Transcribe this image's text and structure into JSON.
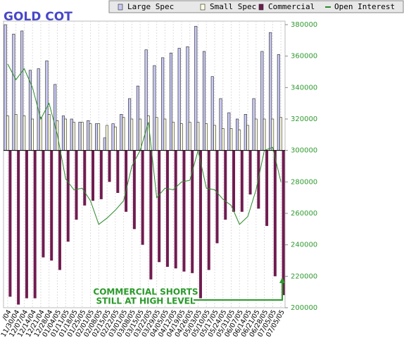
{
  "chart_data": {
    "type": "bar",
    "title": "GOLD COT",
    "categories": [
      "/04",
      "11/30/04",
      "12/07/04",
      "12/14/04",
      "12/21/04",
      "12/28/04",
      "01/04/05",
      "01/11/05",
      "01/18/05",
      "01/25/05",
      "02/01/05",
      "02/08/05",
      "02/15/05",
      "02/22/05",
      "03/01/05",
      "03/08/05",
      "03/15/05",
      "03/22/05",
      "03/29/05",
      "04/05/05",
      "04/12/05",
      "04/19/05",
      "04/26/05",
      "05/03/05",
      "05/10/05",
      "05/17/05",
      "05/24/05",
      "05/31/05",
      "06/07/05",
      "06/14/05",
      "06/21/05",
      "06/28/05",
      "07/05/05",
      "07/05/05"
    ],
    "bar_base": 300000,
    "series": [
      {
        "name": "Large Spec",
        "color": "#c8c8f4",
        "values": [
          380000,
          374000,
          376000,
          351000,
          352000,
          357000,
          342000,
          322000,
          320000,
          318000,
          319000,
          317000,
          308000,
          317000,
          323000,
          333000,
          341000,
          364000,
          354000,
          359000,
          362000,
          365000,
          366000,
          379000,
          363000,
          347000,
          333000,
          324000,
          320000,
          323000,
          333000,
          363000,
          375000,
          361000
        ]
      },
      {
        "name": "Small Spec",
        "color": "#ffffe0",
        "values": [
          322000,
          323000,
          322000,
          320000,
          321000,
          323000,
          319000,
          320000,
          318000,
          318000,
          317000,
          317000,
          316000,
          315000,
          321000,
          320000,
          320000,
          322000,
          321000,
          320000,
          318000,
          317000,
          318000,
          318000,
          317000,
          316000,
          314000,
          314000,
          313000,
          316000,
          320000,
          320000,
          320000,
          321000
        ]
      },
      {
        "name": "Commercial",
        "color": "#701c50",
        "values": [
          207000,
          202000,
          206000,
          206000,
          232000,
          230000,
          224000,
          242000,
          256000,
          265000,
          268000,
          269000,
          280000,
          273000,
          261000,
          250000,
          240000,
          218000,
          229000,
          226000,
          225000,
          223000,
          222000,
          206000,
          224000,
          241000,
          256000,
          261000,
          261000,
          272000,
          263000,
          252000,
          220000,
          208000
        ]
      },
      {
        "name": "Open Interest",
        "type": "line",
        "color": "#2a8a2a",
        "values": [
          355000,
          345000,
          352000,
          340000,
          320000,
          330000,
          310000,
          282000,
          275000,
          276000,
          268000,
          253000,
          257000,
          262000,
          268000,
          290000,
          300000,
          318000,
          270000,
          276000,
          275000,
          280000,
          281000,
          300000,
          276000,
          275000,
          269000,
          265000,
          253000,
          258000,
          275000,
          300000,
          302000,
          280000
        ]
      }
    ],
    "ylim": [
      200000,
      380000
    ],
    "yticks": [
      200000,
      220000,
      240000,
      260000,
      280000,
      300000,
      320000,
      340000,
      360000,
      380000
    ],
    "grid": true,
    "annotation": [
      "COMMERCIAL SHORTS",
      "STILL AT HIGH LEVEL"
    ]
  }
}
